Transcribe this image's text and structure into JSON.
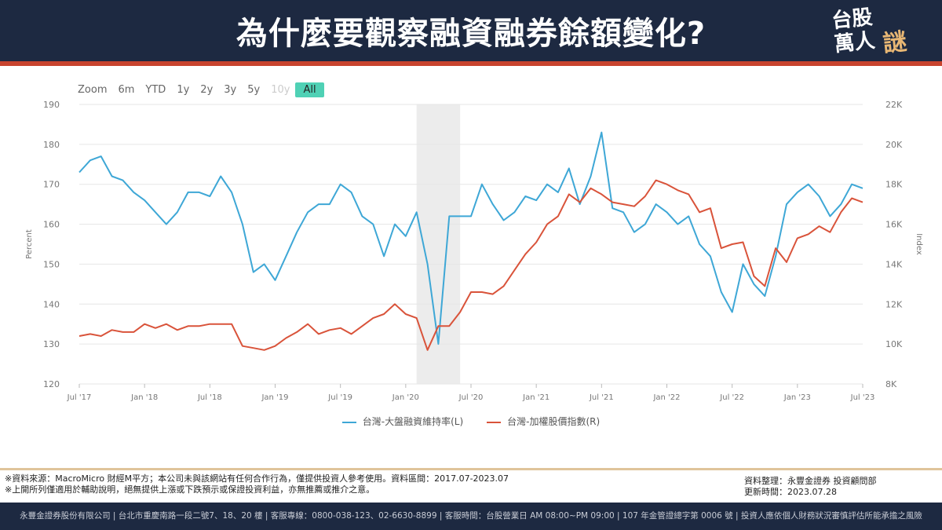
{
  "header": {
    "title": "為什麼要觀察融資融券餘額變化?",
    "logo_text": "台股萬人謎"
  },
  "zoom": {
    "label": "Zoom",
    "buttons": [
      "6m",
      "YTD",
      "1y",
      "2y",
      "3y",
      "5y",
      "10y",
      "All"
    ],
    "disabled": "10y",
    "active": "All"
  },
  "chart_data": {
    "type": "line",
    "title": "",
    "ylabel": "Percent",
    "y2label": "Index",
    "ylim": [
      120,
      190
    ],
    "y2lim": [
      8000,
      22000
    ],
    "yticks": [
      "120",
      "130",
      "140",
      "150",
      "160",
      "170",
      "180",
      "190"
    ],
    "y2ticks": [
      "8K",
      "10K",
      "12K",
      "14K",
      "16K",
      "18K",
      "20K",
      "22K"
    ],
    "xticks": [
      "Jul '17",
      "Jan '18",
      "Jul '18",
      "Jan '19",
      "Jul '19",
      "Jan '20",
      "Jul '20",
      "Jan '21",
      "Jul '21",
      "Jan '22",
      "Jul '22",
      "Jan '23",
      "Jul '23"
    ],
    "x_start": "2017-07",
    "x_end": "2023-07",
    "highlight": [
      "2020-02",
      "2020-06"
    ],
    "grid": true,
    "legend": "bottom",
    "series": [
      {
        "name": "台灣-大盤融資維持率(L)",
        "axis": "left",
        "color": "#3ea7d6",
        "values": [
          173,
          176,
          177,
          172,
          171,
          168,
          166,
          163,
          160,
          163,
          168,
          168,
          167,
          172,
          168,
          160,
          148,
          150,
          146,
          152,
          158,
          163,
          165,
          165,
          170,
          168,
          162,
          160,
          152,
          160,
          157,
          163,
          150,
          130,
          162,
          162,
          162,
          170,
          165,
          161,
          163,
          167,
          166,
          170,
          168,
          174,
          165,
          172,
          183,
          164,
          163,
          158,
          160,
          165,
          163,
          160,
          162,
          155,
          152,
          143,
          138,
          150,
          145,
          142,
          152,
          165,
          168,
          170,
          167,
          162,
          165,
          170,
          169
        ]
      },
      {
        "name": "台灣-加權股價指數(R)",
        "axis": "right",
        "color": "#d9533a",
        "values": [
          10400,
          10500,
          10400,
          10700,
          10600,
          10600,
          11000,
          10800,
          11000,
          10700,
          10900,
          10900,
          11000,
          11000,
          11000,
          9900,
          9800,
          9700,
          9900,
          10300,
          10600,
          11000,
          10500,
          10700,
          10800,
          10500,
          10900,
          11300,
          11500,
          12000,
          11500,
          11300,
          9700,
          10900,
          10900,
          11600,
          12600,
          12600,
          12500,
          12900,
          13700,
          14500,
          15100,
          16000,
          16400,
          17500,
          17100,
          17800,
          17500,
          17100,
          17000,
          16900,
          17400,
          18200,
          18000,
          17700,
          17500,
          16600,
          16800,
          14800,
          15000,
          15100,
          13400,
          12900,
          14800,
          14100,
          15300,
          15500,
          15900,
          15600,
          16600,
          17300,
          17100
        ]
      }
    ]
  },
  "notes": {
    "line1": "※資料來源：MacroMicro 財經M平方；本公司未與該網站有任何合作行為，僅提供投資人參考使用。資料區間：2017.07-2023.07",
    "line2": "※上開所列僅適用於輔助說明，絕無提供上漲或下跌預示或保證投資利益，亦無推薦或推介之意。"
  },
  "credit": {
    "line1": "資料整理：永豐金證券 投資顧問部",
    "line2": "更新時間：2023.07.28"
  },
  "footer": "永豐金證券股份有限公司 | 台北市重慶南路一段二號7、18、20 樓 | 客服專線：0800-038-123、02-6630-8899 | 客服時間：台股營業日 AM 08:00~PM 09:00 | 107 年金管證總字第 0006 號 | 投資人應依個人財務狀況審慎評估所能承擔之風險"
}
